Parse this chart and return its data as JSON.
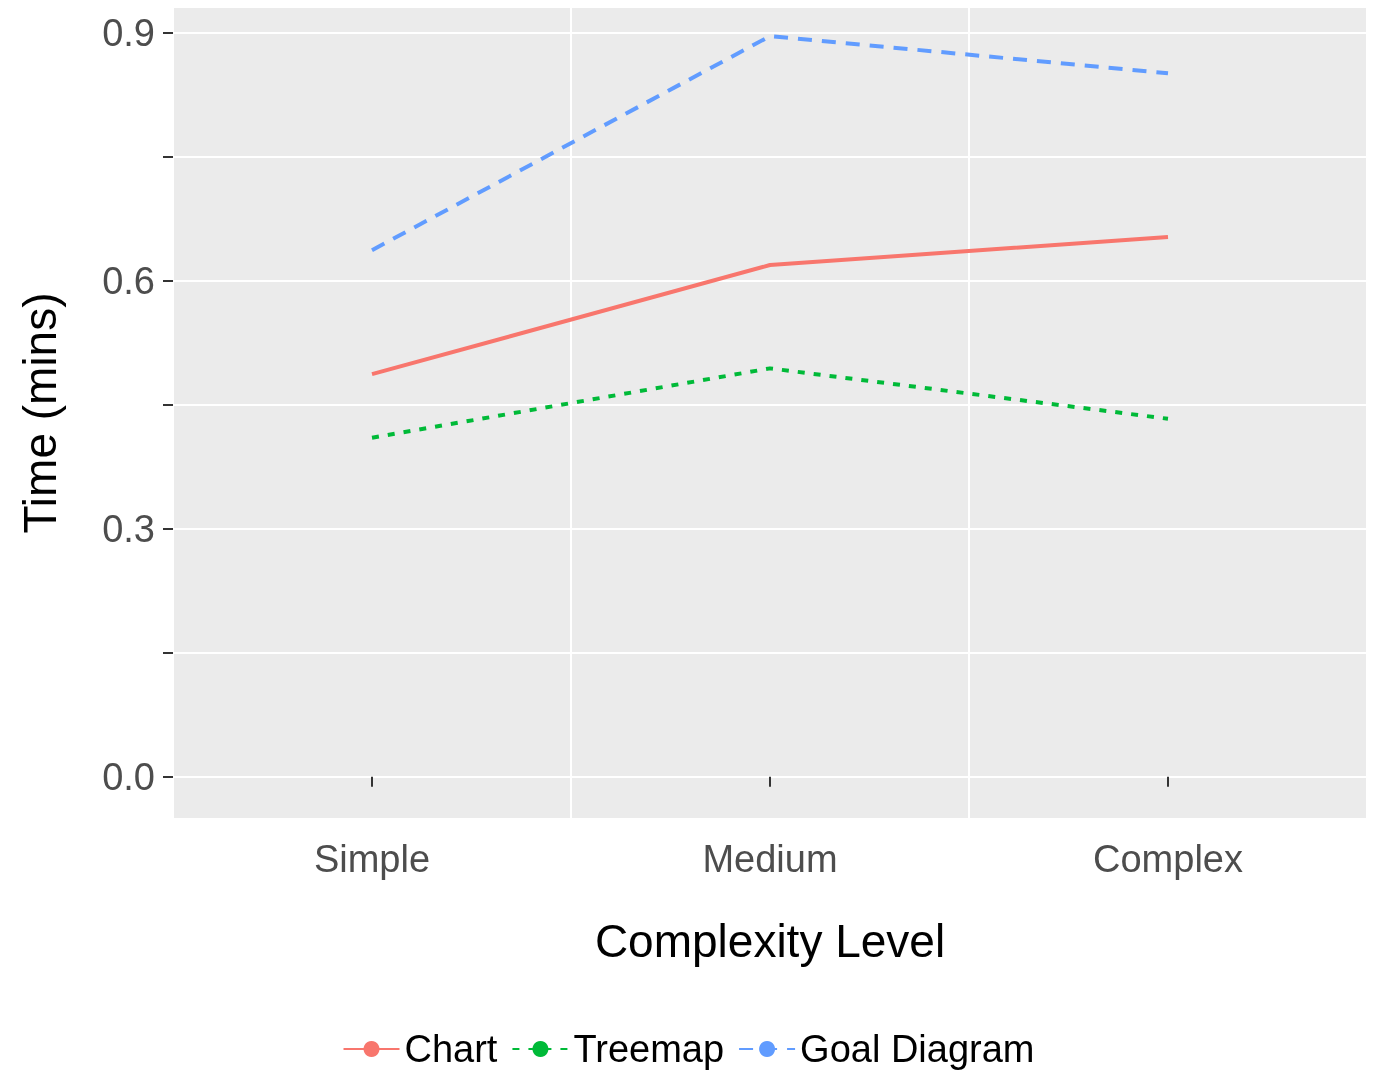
{
  "chart_data": {
    "type": "line",
    "xlabel": "Complexity Level",
    "ylabel": "Time (mins)",
    "categories": [
      "Simple",
      "Medium",
      "Complex"
    ],
    "series": [
      {
        "name": "Chart",
        "color": "#f8766d",
        "line_style": "solid",
        "values": [
          0.487,
          0.619,
          0.653
        ]
      },
      {
        "name": "Treemap",
        "color": "#00ba38",
        "line_style": "dotted",
        "values": [
          0.41,
          0.494,
          0.433
        ]
      },
      {
        "name": "Goal Diagram",
        "color": "#619cff",
        "line_style": "dashed",
        "values": [
          0.637,
          0.896,
          0.851
        ]
      }
    ],
    "ylim": [
      -0.05,
      0.93
    ],
    "yticks": [
      {
        "value": 0,
        "label": "0.0"
      },
      {
        "value": 0.15,
        "label": null
      },
      {
        "value": 0.3,
        "label": "0.3"
      },
      {
        "value": 0.45,
        "label": null
      },
      {
        "value": 0.6,
        "label": "0.6"
      },
      {
        "value": 0.75,
        "label": null
      },
      {
        "value": 0.9,
        "label": "0.9"
      }
    ],
    "grid": true,
    "legend": "bottom",
    "marker": "none"
  }
}
